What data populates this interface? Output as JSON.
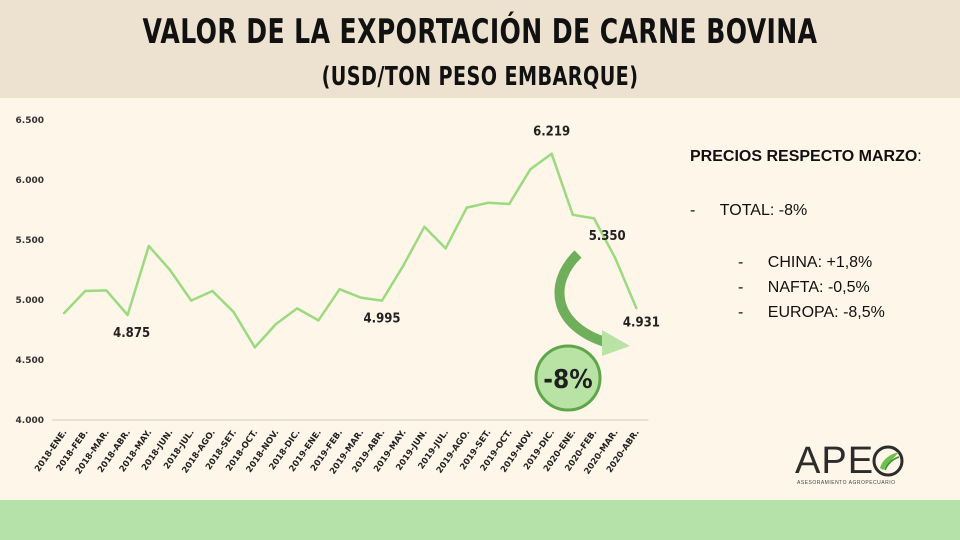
{
  "header": {
    "title": "VALOR DE LA EXPORTACIÓN DE CARNE BOVINA",
    "subtitle": "(USD/TON PESO EMBARQUE)"
  },
  "chart_data": {
    "type": "line",
    "title": "VALOR DE LA EXPORTACIÓN DE CARNE BOVINA",
    "subtitle": "(USD/TON PESO EMBARQUE)",
    "xlabel": "",
    "ylabel": "",
    "ylim": [
      4000,
      6500
    ],
    "yticks": [
      4000,
      4500,
      5000,
      5500,
      6000,
      6500
    ],
    "ytick_labels": [
      "4.000",
      "4.500",
      "5.000",
      "5.500",
      "6.000",
      "6.500"
    ],
    "grid": false,
    "color": "#9cd97f",
    "categories": [
      "2018-ENE.",
      "2018-FEB.",
      "2018-MAR.",
      "2018-ABR.",
      "2018-MAY.",
      "2018-JUN.",
      "2018-JUL.",
      "2018-AGO.",
      "2018-SET.",
      "2018-OCT.",
      "2018-NOV.",
      "2018-DIC.",
      "2019-ENE.",
      "2019-FEB.",
      "2019-MAR.",
      "2019-ABR.",
      "2019-MAY.",
      "2019-JUN.",
      "2019-JUL.",
      "2019-AGO.",
      "2019-SET.",
      "2019-OCT.",
      "2019-NOV.",
      "2019-DIC.",
      "2020-ENE.",
      "2020-FEB.",
      "2020-MAR.",
      "2020-ABR."
    ],
    "series": [
      {
        "name": "USD/TON",
        "values": [
          4890,
          5075,
          5080,
          4875,
          5450,
          5250,
          4995,
          5075,
          4900,
          4605,
          4800,
          4930,
          4830,
          5090,
          5020,
          4995,
          5285,
          5610,
          5430,
          5770,
          5810,
          5800,
          6090,
          6219,
          5710,
          5680,
          5350,
          4931
        ]
      }
    ],
    "annotations": [
      {
        "label": "4.875",
        "index": 3
      },
      {
        "label": "4.995",
        "index": 15
      },
      {
        "label": "6.219",
        "index": 23
      },
      {
        "label": "5.350",
        "index": 26
      },
      {
        "label": "4.931",
        "index": 27
      }
    ],
    "badge": "-8%"
  },
  "notes": {
    "heading": "PRECIOS RESPECTO MARZO",
    "colon": ":",
    "items": [
      {
        "dash": "-",
        "label": "TOTAL:",
        "value": "-8%"
      },
      {
        "dash": "-",
        "label": "CHINA:",
        "value": "+1,8%"
      },
      {
        "dash": "-",
        "label": "NAFTA:",
        "value": "-0,5%"
      },
      {
        "dash": "-",
        "label": "EUROPA:",
        "value": "-8,5%"
      }
    ]
  },
  "logo": {
    "text": "APE",
    "sub": "ASESORAMIENTO AGROPECUARIO"
  },
  "colors": {
    "header_bg": "#ede2cf",
    "page_bg": "#fdf6e9",
    "footer_bg": "#b5e2a9",
    "line": "#9cd97f",
    "arrow": "#5fa64a",
    "badge_fill": "#b9e3a5",
    "badge_border": "#5fa64a"
  }
}
